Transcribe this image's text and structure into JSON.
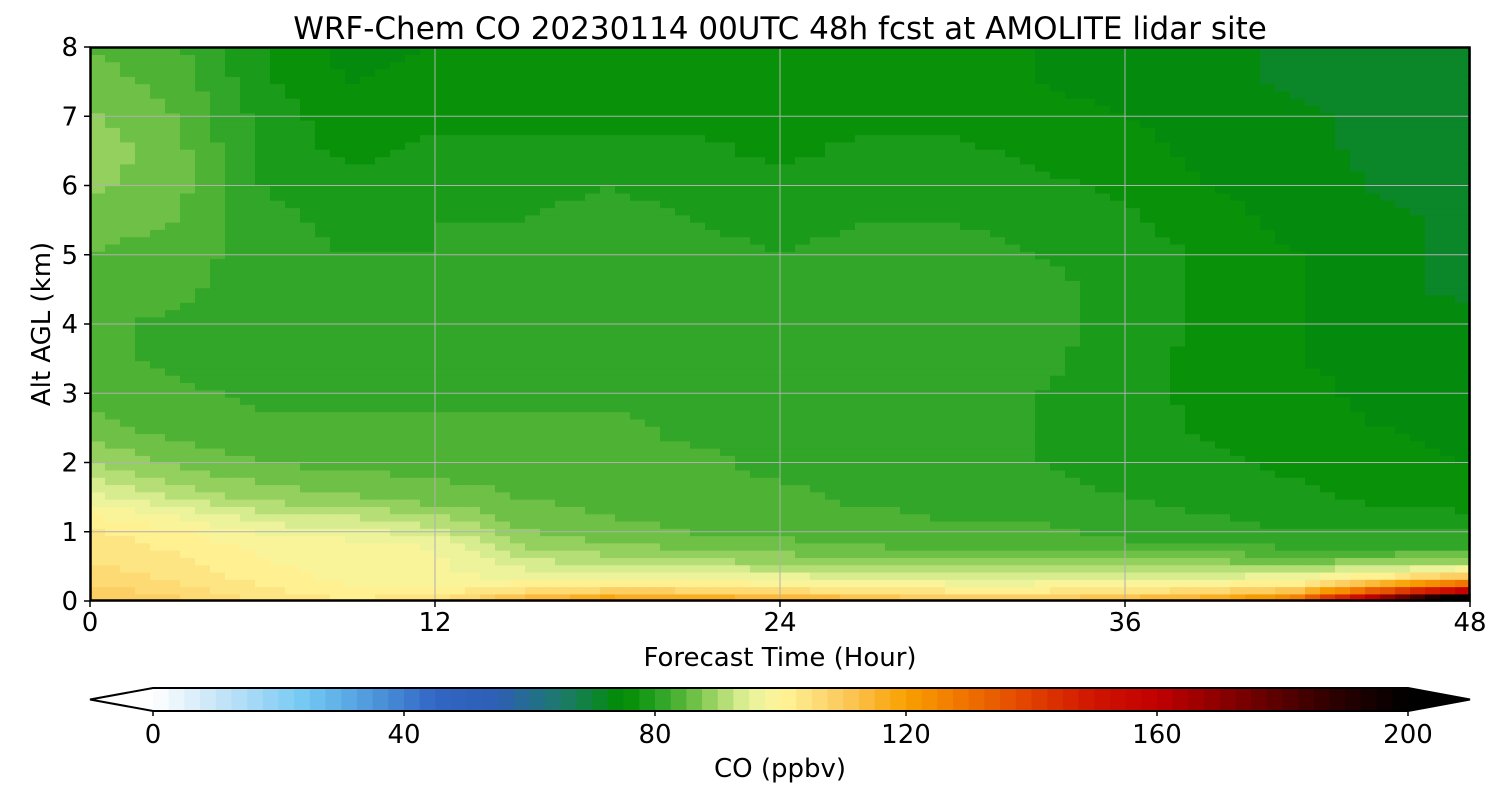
{
  "chart_data": {
    "type": "heatmap",
    "title": "WRF-Chem CO  20230114 00UTC 48h fcst at AMOLITE lidar site",
    "xlabel": "Forecast Time (Hour)",
    "ylabel": "Alt AGL (km)",
    "xlim": [
      0,
      48
    ],
    "ylim": [
      0,
      8
    ],
    "xticks": [
      0,
      12,
      24,
      36,
      48
    ],
    "yticks": [
      0,
      1,
      2,
      3,
      4,
      5,
      6,
      7,
      8
    ],
    "grid": true,
    "x_hours": [
      0,
      3,
      6,
      9,
      12,
      15,
      18,
      21,
      24,
      27,
      30,
      33,
      36,
      39,
      42,
      45,
      48
    ],
    "y_km": [
      0.05,
      0.2,
      0.4,
      0.6,
      0.8,
      1.0,
      1.25,
      1.5,
      2.0,
      2.5,
      3.0,
      3.5,
      4.0,
      4.5,
      5.0,
      5.5,
      6.0,
      6.5,
      7.0,
      7.5,
      8.0
    ],
    "co_ppbv": [
      [
        110,
        108,
        104,
        102,
        104,
        112,
        118,
        116,
        114,
        112,
        108,
        108,
        112,
        116,
        126,
        168,
        210
      ],
      [
        108,
        106,
        103,
        100,
        100,
        102,
        104,
        104,
        102,
        101,
        100,
        100,
        101,
        102,
        106,
        124,
        140
      ],
      [
        106,
        104,
        101,
        99,
        98,
        96,
        95,
        95,
        94,
        93,
        92,
        92,
        92,
        93,
        94,
        98,
        104
      ],
      [
        105,
        103,
        100,
        99,
        98,
        93,
        91,
        90,
        89,
        88,
        87,
        87,
        87,
        87,
        86,
        87,
        88
      ],
      [
        104,
        102,
        99,
        99,
        97,
        90,
        88,
        87,
        86,
        85,
        84,
        84,
        83,
        83,
        82,
        82,
        82
      ],
      [
        103,
        101,
        97,
        96,
        94,
        88,
        86,
        85,
        84,
        84,
        83,
        83,
        82,
        81,
        80,
        80,
        80
      ],
      [
        100,
        97,
        93,
        92,
        90,
        86,
        85,
        84,
        83,
        83,
        82,
        82,
        81,
        80,
        79,
        78,
        78
      ],
      [
        96,
        92,
        89,
        88,
        86,
        85,
        84,
        83,
        83,
        82,
        82,
        81,
        80,
        79,
        78,
        77,
        76
      ],
      [
        90,
        87,
        85,
        84,
        84,
        84,
        83,
        83,
        82,
        82,
        81,
        80,
        79,
        78,
        77,
        76,
        75
      ],
      [
        86,
        84,
        83,
        83,
        83,
        83,
        83,
        82,
        82,
        82,
        81,
        80,
        79,
        77,
        76,
        75,
        74
      ],
      [
        84,
        83,
        82,
        82,
        82,
        82,
        82,
        82,
        82,
        82,
        81,
        80,
        78,
        77,
        76,
        74,
        73
      ],
      [
        83,
        82,
        81,
        81,
        81,
        81,
        82,
        82,
        82,
        82,
        81,
        81,
        78,
        77,
        75,
        74,
        73
      ],
      [
        83,
        82,
        81,
        80,
        80,
        81,
        82,
        82,
        82,
        82,
        82,
        81,
        79,
        77,
        75,
        74,
        73
      ],
      [
        84,
        83,
        81,
        80,
        80,
        81,
        81,
        82,
        80,
        82,
        82,
        81,
        79,
        77,
        75,
        73,
        72
      ],
      [
        85,
        84,
        81,
        80,
        80,
        81,
        81,
        81,
        80,
        81,
        81,
        80,
        79,
        77,
        75,
        73,
        72
      ],
      [
        86,
        85,
        81,
        79,
        80,
        80,
        81,
        80,
        79,
        80,
        80,
        79,
        78,
        76,
        74,
        73,
        72
      ],
      [
        88,
        86,
        80,
        78,
        79,
        79,
        80,
        79,
        78,
        79,
        79,
        78,
        77,
        75,
        74,
        72,
        72
      ],
      [
        89,
        86,
        79,
        77,
        78,
        78,
        78,
        78,
        77,
        78,
        78,
        77,
        76,
        74,
        73,
        72,
        72
      ],
      [
        88,
        85,
        79,
        76,
        77,
        77,
        77,
        77,
        77,
        77,
        77,
        76,
        75,
        74,
        73,
        72,
        72
      ],
      [
        86,
        84,
        78,
        75,
        76,
        76,
        76,
        77,
        77,
        77,
        76,
        75,
        74,
        73,
        72,
        71,
        72
      ],
      [
        85,
        83,
        78,
        74,
        75,
        75,
        76,
        77,
        77,
        77,
        76,
        75,
        74,
        73,
        72,
        71,
        71
      ]
    ],
    "colorbar": {
      "label": "CO  (ppbv)",
      "min": 0,
      "max": 200,
      "step": 2.5,
      "ticks": [
        0,
        40,
        80,
        120,
        160,
        200
      ],
      "extend": "both",
      "stops": [
        {
          "v": 0,
          "c": "#ffffff"
        },
        {
          "v": 10,
          "c": "#c8e6f8"
        },
        {
          "v": 25,
          "c": "#6fc6f2"
        },
        {
          "v": 35,
          "c": "#4f97db"
        },
        {
          "v": 45,
          "c": "#3066c4"
        },
        {
          "v": 55,
          "c": "#2d5fb4"
        },
        {
          "v": 65,
          "c": "#1c7a6c"
        },
        {
          "v": 75,
          "c": "#008d00"
        },
        {
          "v": 80,
          "c": "#22a022"
        },
        {
          "v": 85,
          "c": "#5cb83a"
        },
        {
          "v": 90,
          "c": "#a5d86a"
        },
        {
          "v": 95,
          "c": "#e6f29a"
        },
        {
          "v": 100,
          "c": "#fff59a"
        },
        {
          "v": 110,
          "c": "#fcc95c"
        },
        {
          "v": 120,
          "c": "#f8a000"
        },
        {
          "v": 130,
          "c": "#ef7000"
        },
        {
          "v": 140,
          "c": "#e04000"
        },
        {
          "v": 150,
          "c": "#d01400"
        },
        {
          "v": 160,
          "c": "#c00000"
        },
        {
          "v": 170,
          "c": "#8c0000"
        },
        {
          "v": 180,
          "c": "#560000"
        },
        {
          "v": 190,
          "c": "#240000"
        },
        {
          "v": 200,
          "c": "#000000"
        }
      ]
    }
  }
}
